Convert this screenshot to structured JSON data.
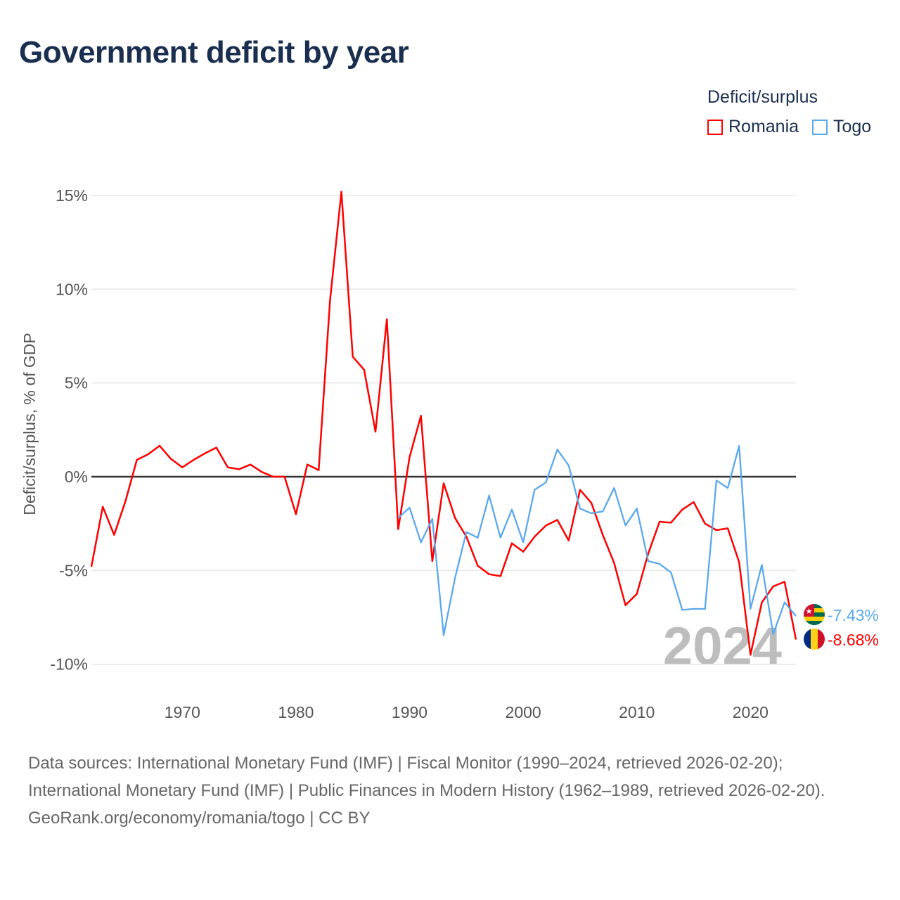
{
  "title": "Government deficit by year",
  "legend": {
    "title": "Deficit/surplus",
    "items": [
      {
        "label": "Romania",
        "color": "#ff0000"
      },
      {
        "label": "Togo",
        "color": "#5aa8ee"
      }
    ]
  },
  "chart_data": {
    "type": "line",
    "title": "Government deficit by year",
    "xlabel": "",
    "ylabel": "Deficit/surplus, % of GDP",
    "xlim": [
      1962,
      2024
    ],
    "ylim": [
      -10,
      15
    ],
    "yticks": [
      15,
      10,
      5,
      0,
      -5,
      -10
    ],
    "ytick_labels": [
      "15%",
      "10%",
      "5%",
      "0%",
      "-5%",
      "-10%"
    ],
    "xticks": [
      1970,
      1980,
      1990,
      2000,
      2010,
      2020
    ],
    "xtick_labels": [
      "1970",
      "1980",
      "1990",
      "2000",
      "2010",
      "2020"
    ],
    "grid": true,
    "legend_position": "top-right",
    "current_year": "2024",
    "series": [
      {
        "name": "Romania",
        "color": "#ff0000",
        "start_year": 1962,
        "end_label": "-8.68%",
        "values": [
          -4.8,
          -1.6,
          -3.1,
          -1.3,
          0.9,
          1.2,
          1.65,
          0.95,
          0.5,
          0.9,
          1.25,
          1.55,
          0.5,
          0.4,
          0.65,
          0.25,
          0.0,
          0.0,
          -2.0,
          0.65,
          0.35,
          9.4,
          15.2,
          6.4,
          5.7,
          2.4,
          8.4,
          -2.8,
          1.05,
          3.25,
          -4.5,
          -0.35,
          -2.2,
          -3.2,
          -4.75,
          -5.2,
          -5.3,
          -3.55,
          -4.0,
          -3.2,
          -2.6,
          -2.3,
          -3.4,
          -0.7,
          -1.4,
          -3.1,
          -4.6,
          -6.85,
          -6.25,
          -4.1,
          -2.4,
          -2.45,
          -1.75,
          -1.35,
          -2.5,
          -2.85,
          -2.75,
          -4.55,
          -9.5,
          -6.7,
          -5.85,
          -5.6,
          -8.68
        ]
      },
      {
        "name": "Togo",
        "color": "#5aa8ee",
        "start_year": 1989,
        "end_label": "-7.43%",
        "values": [
          -2.2,
          -1.65,
          -3.5,
          -2.25,
          -8.45,
          -5.4,
          -2.95,
          -3.25,
          -1.0,
          -3.25,
          -1.75,
          -3.5,
          -0.7,
          -0.3,
          1.45,
          0.6,
          -1.7,
          -1.95,
          -1.85,
          -0.6,
          -2.6,
          -1.7,
          -4.5,
          -4.65,
          -5.1,
          -7.1,
          -7.05,
          -7.05,
          -0.2,
          -0.6,
          1.65,
          -7.05,
          -4.7,
          -8.4,
          -6.7,
          -7.43
        ]
      }
    ]
  },
  "sources": {
    "line1": "Data sources: International Monetary Fund (IMF) | Fiscal Monitor (1990–2024, retrieved 2026-02-20); International Monetary Fund (IMF) | Public Finances in Modern History (1962–1989, retrieved 2026-02-20).",
    "line2": "GeoRank.org/economy/romania/togo | CC BY"
  }
}
